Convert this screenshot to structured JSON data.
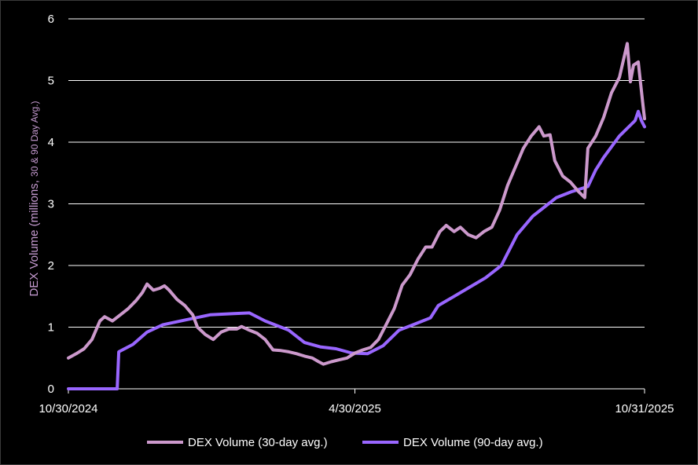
{
  "chart_data": {
    "type": "line",
    "title": "",
    "xlabel": "",
    "ylabel_main": "DEX Volume (millions, ",
    "ylabel_detail": "30 & 90 Day Avg.)",
    "ylabel": "DEX Volume (millions, 30 & 90 Day Avg.)",
    "ylim": [
      0,
      6
    ],
    "yticks": [
      0,
      1,
      2,
      3,
      4,
      5,
      6
    ],
    "xlim": [
      "2024-10-30",
      "2025-10-31"
    ],
    "xtick_labels": [
      "10/30/2024",
      "4/30/2025",
      "10/31/2025"
    ],
    "xtick_dates": [
      "2024-10-30",
      "2025-04-30",
      "2025-10-31"
    ],
    "grid": "horizontal",
    "legend_position": "bottom",
    "colors": {
      "series_30": "#cc99cc",
      "series_90": "#9966ff",
      "grid": "#ffffff",
      "axis": "#ffffff"
    },
    "series": [
      {
        "name": "DEX Volume (30-day avg.)",
        "color": "#cc99cc",
        "points": [
          [
            "2024-10-30",
            0.5
          ],
          [
            "2024-11-04",
            0.57
          ],
          [
            "2024-11-09",
            0.65
          ],
          [
            "2024-11-14",
            0.8
          ],
          [
            "2024-11-19",
            1.1
          ],
          [
            "2024-11-22",
            1.17
          ],
          [
            "2024-11-27",
            1.1
          ],
          [
            "2024-12-02",
            1.2
          ],
          [
            "2024-12-07",
            1.3
          ],
          [
            "2024-12-12",
            1.43
          ],
          [
            "2024-12-16",
            1.56
          ],
          [
            "2024-12-19",
            1.7
          ],
          [
            "2024-12-23",
            1.6
          ],
          [
            "2024-12-27",
            1.63
          ],
          [
            "2024-12-30",
            1.67
          ],
          [
            "2025-01-02",
            1.6
          ],
          [
            "2025-01-07",
            1.45
          ],
          [
            "2025-01-12",
            1.35
          ],
          [
            "2025-01-17",
            1.2
          ],
          [
            "2025-01-20",
            1.0
          ],
          [
            "2025-01-25",
            0.88
          ],
          [
            "2025-01-30",
            0.8
          ],
          [
            "2025-02-04",
            0.92
          ],
          [
            "2025-02-09",
            0.97
          ],
          [
            "2025-02-14",
            0.97
          ],
          [
            "2025-02-17",
            1.01
          ],
          [
            "2025-02-22",
            0.95
          ],
          [
            "2025-02-27",
            0.9
          ],
          [
            "2025-03-04",
            0.8
          ],
          [
            "2025-03-09",
            0.63
          ],
          [
            "2025-03-14",
            0.62
          ],
          [
            "2025-03-19",
            0.6
          ],
          [
            "2025-03-24",
            0.57
          ],
          [
            "2025-03-29",
            0.53
          ],
          [
            "2025-04-03",
            0.5
          ],
          [
            "2025-04-07",
            0.44
          ],
          [
            "2025-04-10",
            0.4
          ],
          [
            "2025-04-15",
            0.44
          ],
          [
            "2025-04-20",
            0.47
          ],
          [
            "2025-04-25",
            0.5
          ],
          [
            "2025-04-30",
            0.58
          ],
          [
            "2025-05-05",
            0.63
          ],
          [
            "2025-05-10",
            0.67
          ],
          [
            "2025-05-15",
            0.8
          ],
          [
            "2025-05-20",
            1.05
          ],
          [
            "2025-05-25",
            1.3
          ],
          [
            "2025-05-30",
            1.68
          ],
          [
            "2025-06-04",
            1.85
          ],
          [
            "2025-06-09",
            2.1
          ],
          [
            "2025-06-14",
            2.3
          ],
          [
            "2025-06-18",
            2.3
          ],
          [
            "2025-06-23",
            2.55
          ],
          [
            "2025-06-27",
            2.65
          ],
          [
            "2025-07-02",
            2.55
          ],
          [
            "2025-07-06",
            2.62
          ],
          [
            "2025-07-11",
            2.5
          ],
          [
            "2025-07-16",
            2.45
          ],
          [
            "2025-07-21",
            2.55
          ],
          [
            "2025-07-26",
            2.62
          ],
          [
            "2025-07-31",
            2.9
          ],
          [
            "2025-08-05",
            3.3
          ],
          [
            "2025-08-10",
            3.6
          ],
          [
            "2025-08-15",
            3.9
          ],
          [
            "2025-08-20",
            4.1
          ],
          [
            "2025-08-25",
            4.25
          ],
          [
            "2025-08-28",
            4.1
          ],
          [
            "2025-09-01",
            4.12
          ],
          [
            "2025-09-04",
            3.7
          ],
          [
            "2025-09-09",
            3.45
          ],
          [
            "2025-09-14",
            3.35
          ],
          [
            "2025-09-19",
            3.2
          ],
          [
            "2025-09-23",
            3.1
          ],
          [
            "2025-09-25",
            3.9
          ],
          [
            "2025-09-30",
            4.1
          ],
          [
            "2025-10-05",
            4.4
          ],
          [
            "2025-10-10",
            4.8
          ],
          [
            "2025-10-15",
            5.05
          ],
          [
            "2025-10-20",
            5.6
          ],
          [
            "2025-10-22",
            4.98
          ],
          [
            "2025-10-24",
            5.25
          ],
          [
            "2025-10-27",
            5.3
          ],
          [
            "2025-10-30",
            4.6
          ],
          [
            "2025-10-31",
            4.38
          ]
        ]
      },
      {
        "name": "DEX Volume (90-day avg.)",
        "color": "#9966ff",
        "points": [
          [
            "2024-10-30",
            0.0
          ],
          [
            "2024-11-14",
            0.0
          ],
          [
            "2024-11-27",
            0.0
          ],
          [
            "2024-11-30",
            0.0
          ],
          [
            "2024-12-01",
            0.6
          ],
          [
            "2024-12-10",
            0.72
          ],
          [
            "2024-12-19",
            0.92
          ],
          [
            "2024-12-29",
            1.04
          ],
          [
            "2025-01-13",
            1.12
          ],
          [
            "2025-01-28",
            1.2
          ],
          [
            "2025-02-12",
            1.22
          ],
          [
            "2025-02-22",
            1.23
          ],
          [
            "2025-03-04",
            1.1
          ],
          [
            "2025-03-19",
            0.95
          ],
          [
            "2025-03-29",
            0.75
          ],
          [
            "2025-04-08",
            0.68
          ],
          [
            "2025-04-18",
            0.65
          ],
          [
            "2025-04-28",
            0.58
          ],
          [
            "2025-05-08",
            0.57
          ],
          [
            "2025-05-18",
            0.7
          ],
          [
            "2025-05-28",
            0.95
          ],
          [
            "2025-06-07",
            1.05
          ],
          [
            "2025-06-17",
            1.15
          ],
          [
            "2025-06-22",
            1.35
          ],
          [
            "2025-07-02",
            1.5
          ],
          [
            "2025-07-12",
            1.65
          ],
          [
            "2025-07-22",
            1.8
          ],
          [
            "2025-08-01",
            2.0
          ],
          [
            "2025-08-11",
            2.5
          ],
          [
            "2025-08-21",
            2.8
          ],
          [
            "2025-08-31",
            3.0
          ],
          [
            "2025-09-05",
            3.1
          ],
          [
            "2025-09-15",
            3.2
          ],
          [
            "2025-09-25",
            3.28
          ],
          [
            "2025-09-30",
            3.55
          ],
          [
            "2025-10-05",
            3.75
          ],
          [
            "2025-10-15",
            4.1
          ],
          [
            "2025-10-25",
            4.35
          ],
          [
            "2025-10-27",
            4.5
          ],
          [
            "2025-10-29",
            4.35
          ],
          [
            "2025-10-31",
            4.25
          ]
        ]
      }
    ]
  }
}
